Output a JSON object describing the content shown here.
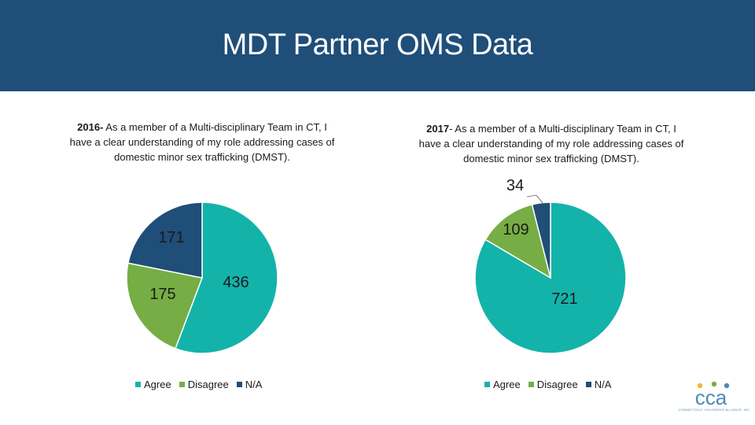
{
  "header": {
    "title": "MDT Partner OMS Data"
  },
  "colors": {
    "agree": "#13b3aa",
    "disagree": "#76ad44",
    "na": "#1f4e79",
    "banner": "#1f4e79"
  },
  "legend": [
    "Agree",
    "Disagree",
    "N/A"
  ],
  "captions": [
    {
      "year": "2016-",
      "text": " As a member of a Multi-disciplinary Team in CT, I have a clear understanding of my role addressing cases of domestic minor sex trafficking (DMST)."
    },
    {
      "year": "2017",
      "text": "- As a member of a Multi-disciplinary Team in CT, I have a clear understanding of my role addressing cases of domestic minor sex trafficking (DMST)."
    }
  ],
  "chart_data": [
    {
      "type": "pie",
      "title": "2016- As a member of a Multi-disciplinary Team in CT, I have a clear understanding of my role addressing cases of domestic minor sex trafficking (DMST).",
      "categories": [
        "Agree",
        "Disagree",
        "N/A"
      ],
      "values": [
        436,
        175,
        171
      ],
      "labels": [
        "436",
        "175",
        "171"
      ],
      "legend": "bottom"
    },
    {
      "type": "pie",
      "title": "2017- As a member of a Multi-disciplinary Team in CT, I have a clear understanding of my role addressing cases of domestic minor sex trafficking (DMST).",
      "categories": [
        "Agree",
        "Disagree",
        "N/A"
      ],
      "values": [
        721,
        109,
        34
      ],
      "labels": [
        "721",
        "109",
        "34"
      ],
      "legend": "bottom"
    }
  ],
  "logo": {
    "text": "cca",
    "tagline": "CONNECTICUT CHILDREN'S ALLIANCE, INC"
  }
}
